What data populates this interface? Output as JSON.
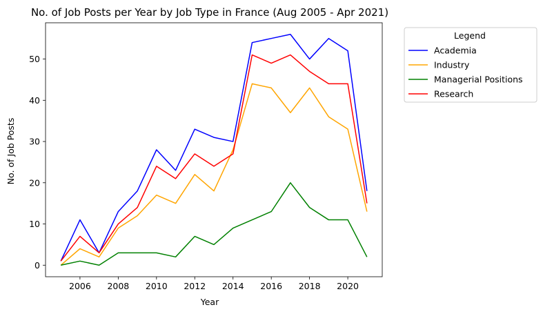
{
  "chart_data": {
    "type": "line",
    "title": "No. of Job Posts per Year by Job Type in France (Aug 2005 - Apr 2021)",
    "xlabel": "Year",
    "ylabel": "No. of Job Posts",
    "xlim": [
      2004.2,
      2021.8
    ],
    "ylim": [
      -2.8,
      58.8
    ],
    "x_ticks": [
      2006,
      2008,
      2010,
      2012,
      2014,
      2016,
      2018,
      2020
    ],
    "y_ticks": [
      0,
      10,
      20,
      30,
      40,
      50
    ],
    "grid": false,
    "legend": {
      "title": "Legend",
      "placement": "outside-top-right"
    },
    "x": [
      2005,
      2006,
      2007,
      2008,
      2009,
      2010,
      2011,
      2012,
      2013,
      2014,
      2015,
      2016,
      2017,
      2018,
      2019,
      2020,
      2021
    ],
    "series": [
      {
        "name": "Academia",
        "color": "#0000ff",
        "values": [
          1,
          11,
          3,
          13,
          18,
          28,
          23,
          33,
          31,
          30,
          54,
          55,
          56,
          50,
          55,
          52,
          18
        ]
      },
      {
        "name": "Industry",
        "color": "#ffa500",
        "values": [
          0,
          4,
          2,
          9,
          12,
          17,
          15,
          22,
          18,
          28,
          44,
          43,
          37,
          43,
          36,
          33,
          13
        ]
      },
      {
        "name": "Managerial Positions",
        "color": "#008000",
        "values": [
          0,
          1,
          0,
          3,
          3,
          3,
          2,
          7,
          5,
          9,
          11,
          13,
          20,
          14,
          11,
          11,
          2
        ]
      },
      {
        "name": "Research",
        "color": "#ff0000",
        "values": [
          1,
          7,
          3,
          10,
          14,
          24,
          21,
          27,
          24,
          27,
          51,
          49,
          51,
          47,
          44,
          44,
          15
        ]
      }
    ]
  }
}
